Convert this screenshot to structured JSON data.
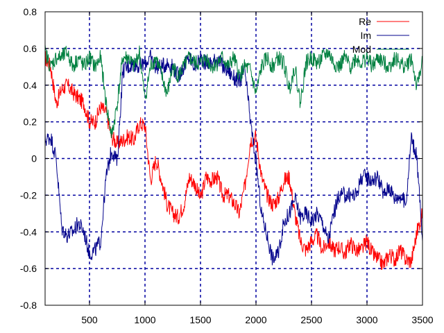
{
  "chart_data": {
    "type": "line",
    "title": "",
    "xlabel": "",
    "ylabel": "",
    "xlim": [
      100,
      3500
    ],
    "ylim": [
      -0.8,
      0.8
    ],
    "xticks": [
      500,
      1000,
      1500,
      2000,
      2500,
      3000,
      3500
    ],
    "yticks": [
      -0.8,
      -0.6,
      -0.4,
      -0.2,
      0,
      0.2,
      0.4,
      0.6,
      0.8
    ],
    "xtick_labels": [
      "500",
      "1000",
      "1500",
      "2000",
      "2500",
      "3000",
      "3500"
    ],
    "ytick_labels": [
      "-0.8",
      "-0.6",
      "-0.4",
      "-0.2",
      "0",
      "0.2",
      "0.4",
      "0.6",
      "0.8"
    ],
    "grid": true,
    "legend_position": "top-right",
    "x": [
      100,
      150,
      200,
      250,
      300,
      350,
      400,
      450,
      500,
      550,
      600,
      650,
      700,
      750,
      800,
      850,
      900,
      950,
      1000,
      1050,
      1100,
      1150,
      1200,
      1250,
      1300,
      1350,
      1400,
      1450,
      1500,
      1550,
      1600,
      1650,
      1700,
      1750,
      1800,
      1850,
      1900,
      1950,
      2000,
      2050,
      2100,
      2150,
      2200,
      2250,
      2300,
      2350,
      2400,
      2450,
      2500,
      2550,
      2600,
      2650,
      2700,
      2750,
      2800,
      2850,
      2900,
      2950,
      3000,
      3050,
      3100,
      3150,
      3200,
      3250,
      3300,
      3350,
      3400,
      3450,
      3500
    ],
    "series": [
      {
        "name": "Re",
        "color": "#ff0000",
        "values": [
          0.55,
          0.5,
          0.3,
          0.38,
          0.4,
          0.36,
          0.33,
          0.3,
          0.2,
          0.2,
          0.28,
          0.25,
          0.12,
          0.08,
          0.1,
          0.12,
          0.1,
          0.19,
          0.18,
          -0.12,
          0.0,
          -0.12,
          -0.25,
          -0.3,
          -0.32,
          -0.25,
          -0.1,
          -0.14,
          -0.22,
          -0.1,
          -0.12,
          -0.1,
          -0.2,
          -0.2,
          -0.24,
          -0.3,
          -0.15,
          0.1,
          0.12,
          -0.1,
          -0.2,
          -0.25,
          -0.22,
          -0.12,
          -0.1,
          -0.3,
          -0.45,
          -0.5,
          -0.45,
          -0.42,
          -0.5,
          -0.45,
          -0.5,
          -0.48,
          -0.52,
          -0.46,
          -0.5,
          -0.5,
          -0.45,
          -0.52,
          -0.55,
          -0.58,
          -0.52,
          -0.55,
          -0.5,
          -0.55,
          -0.56,
          -0.4,
          -0.3
        ]
      },
      {
        "name": "Im",
        "color": "#00008b",
        "values": [
          0.1,
          0.12,
          0.0,
          -0.38,
          -0.42,
          -0.4,
          -0.35,
          -0.4,
          -0.52,
          -0.5,
          -0.45,
          -0.1,
          0.05,
          -0.02,
          0.48,
          0.5,
          0.52,
          0.5,
          0.52,
          0.55,
          0.5,
          0.5,
          0.52,
          0.5,
          0.45,
          0.5,
          0.55,
          0.5,
          0.55,
          0.52,
          0.52,
          0.55,
          0.5,
          0.48,
          0.44,
          0.42,
          0.48,
          0.2,
          -0.02,
          -0.3,
          -0.42,
          -0.55,
          -0.52,
          -0.35,
          -0.3,
          -0.22,
          -0.32,
          -0.3,
          -0.34,
          -0.3,
          -0.35,
          -0.45,
          -0.3,
          -0.2,
          -0.2,
          -0.2,
          -0.2,
          -0.1,
          -0.1,
          -0.12,
          -0.1,
          -0.2,
          -0.15,
          -0.22,
          -0.2,
          -0.25,
          0.12,
          0.0,
          -0.45
        ]
      },
      {
        "name": "Mod",
        "color": "#008040",
        "values": [
          0.58,
          0.5,
          0.55,
          0.55,
          0.58,
          0.5,
          0.55,
          0.5,
          0.55,
          0.5,
          0.55,
          0.3,
          0.12,
          0.3,
          0.55,
          0.55,
          0.5,
          0.58,
          0.32,
          0.5,
          0.55,
          0.45,
          0.35,
          0.5,
          0.45,
          0.5,
          0.55,
          0.52,
          0.52,
          0.55,
          0.5,
          0.52,
          0.55,
          0.5,
          0.55,
          0.45,
          0.5,
          0.48,
          0.35,
          0.5,
          0.55,
          0.5,
          0.55,
          0.52,
          0.38,
          0.5,
          0.3,
          0.52,
          0.55,
          0.52,
          0.55,
          0.58,
          0.52,
          0.5,
          0.55,
          0.5,
          0.55,
          0.52,
          0.55,
          0.5,
          0.55,
          0.52,
          0.5,
          0.55,
          0.52,
          0.5,
          0.55,
          0.38,
          0.55
        ]
      }
    ]
  }
}
